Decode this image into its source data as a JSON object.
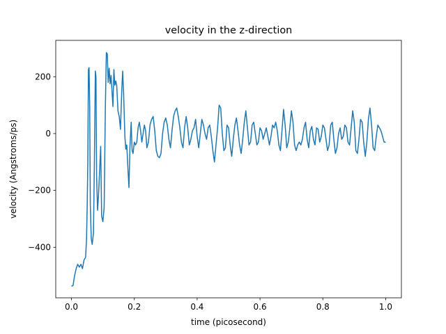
{
  "chart_data": {
    "type": "line",
    "title": "velocity in the z-direction",
    "x_label": "time (picosecond)",
    "y_label": "velocity (Angstroms/ps)",
    "xlim": [
      -0.05,
      1.05
    ],
    "ylim": [
      -578,
      328
    ],
    "xticks": [
      {
        "value": 0,
        "label": "0.0"
      },
      0.2,
      0.4,
      0.6,
      0.8,
      {
        "value": 1,
        "label": "1.0"
      }
    ],
    "yticks": [
      {
        "value": -400,
        "label": "−400"
      },
      {
        "value": -200,
        "label": "−200"
      },
      0,
      200
    ],
    "color": "#1f77b4",
    "x": [
      0.0,
      0.005,
      0.01,
      0.015,
      0.02,
      0.025,
      0.03,
      0.035,
      0.04,
      0.045,
      0.048,
      0.05,
      0.052,
      0.054,
      0.056,
      0.058,
      0.06,
      0.063,
      0.066,
      0.07,
      0.073,
      0.076,
      0.078,
      0.08,
      0.083,
      0.086,
      0.09,
      0.093,
      0.096,
      0.1,
      0.104,
      0.108,
      0.111,
      0.114,
      0.117,
      0.12,
      0.123,
      0.126,
      0.129,
      0.132,
      0.135,
      0.138,
      0.141,
      0.144,
      0.148,
      0.152,
      0.156,
      0.16,
      0.163,
      0.166,
      0.17,
      0.173,
      0.176,
      0.18,
      0.183,
      0.186,
      0.19,
      0.193,
      0.196,
      0.2,
      0.204,
      0.208,
      0.212,
      0.216,
      0.22,
      0.224,
      0.228,
      0.232,
      0.236,
      0.24,
      0.245,
      0.25,
      0.255,
      0.26,
      0.265,
      0.27,
      0.275,
      0.28,
      0.285,
      0.29,
      0.295,
      0.3,
      0.305,
      0.31,
      0.315,
      0.32,
      0.325,
      0.33,
      0.335,
      0.34,
      0.345,
      0.35,
      0.355,
      0.36,
      0.365,
      0.37,
      0.375,
      0.38,
      0.385,
      0.39,
      0.395,
      0.4,
      0.405,
      0.41,
      0.415,
      0.42,
      0.425,
      0.43,
      0.435,
      0.44,
      0.445,
      0.45,
      0.455,
      0.46,
      0.465,
      0.47,
      0.475,
      0.48,
      0.485,
      0.49,
      0.495,
      0.5,
      0.505,
      0.51,
      0.515,
      0.52,
      0.525,
      0.53,
      0.535,
      0.54,
      0.545,
      0.55,
      0.555,
      0.56,
      0.565,
      0.57,
      0.575,
      0.58,
      0.585,
      0.59,
      0.595,
      0.6,
      0.605,
      0.61,
      0.615,
      0.62,
      0.625,
      0.63,
      0.635,
      0.64,
      0.645,
      0.65,
      0.655,
      0.66,
      0.665,
      0.67,
      0.675,
      0.68,
      0.685,
      0.69,
      0.695,
      0.7,
      0.705,
      0.71,
      0.715,
      0.72,
      0.725,
      0.73,
      0.735,
      0.74,
      0.745,
      0.75,
      0.755,
      0.76,
      0.765,
      0.77,
      0.775,
      0.78,
      0.785,
      0.79,
      0.795,
      0.8,
      0.805,
      0.81,
      0.815,
      0.82,
      0.825,
      0.83,
      0.835,
      0.84,
      0.845,
      0.85,
      0.855,
      0.86,
      0.865,
      0.87,
      0.875,
      0.88,
      0.885,
      0.89,
      0.895,
      0.9,
      0.905,
      0.91,
      0.915,
      0.92,
      0.925,
      0.93,
      0.935,
      0.94,
      0.945,
      0.95,
      0.955,
      0.96,
      0.965,
      0.97,
      0.975,
      0.98,
      0.985,
      0.99,
      0.995,
      1.0
    ],
    "values": [
      -537,
      -535,
      -500,
      -475,
      -460,
      -470,
      -460,
      -475,
      -445,
      -435,
      -370,
      -260,
      -100,
      225,
      232,
      100,
      -250,
      -370,
      -390,
      -350,
      -100,
      220,
      200,
      -150,
      -270,
      -220,
      -120,
      -45,
      -290,
      -310,
      -260,
      100,
      285,
      280,
      180,
      230,
      175,
      205,
      150,
      95,
      225,
      170,
      185,
      170,
      80,
      60,
      15,
      150,
      220,
      140,
      -10,
      -55,
      -40,
      -130,
      -190,
      -50,
      40,
      -60,
      -70,
      -30,
      -40,
      -30,
      20,
      40,
      10,
      -30,
      0,
      30,
      10,
      -50,
      -30,
      30,
      50,
      60,
      10,
      -60,
      -80,
      -85,
      -70,
      0,
      40,
      55,
      30,
      -20,
      -50,
      10,
      60,
      80,
      90,
      60,
      20,
      -30,
      -50,
      20,
      60,
      20,
      -40,
      -20,
      10,
      20,
      50,
      -10,
      -50,
      0,
      50,
      30,
      0,
      -20,
      20,
      30,
      -10,
      -60,
      -100,
      -40,
      20,
      100,
      90,
      0,
      -60,
      -50,
      30,
      20,
      -40,
      -80,
      -20,
      30,
      55,
      10,
      -40,
      -70,
      -20,
      40,
      80,
      20,
      -40,
      -30,
      30,
      40,
      0,
      -40,
      -30,
      20,
      10,
      -20,
      0,
      20,
      -10,
      -40,
      -10,
      30,
      20,
      40,
      10,
      -40,
      -60,
      10,
      85,
      30,
      -50,
      -30,
      20,
      80,
      40,
      -40,
      -60,
      -40,
      -30,
      -40,
      -20,
      20,
      40,
      -20,
      -50,
      10,
      25,
      -20,
      -40,
      20,
      15,
      -30,
      -10,
      30,
      20,
      -20,
      -60,
      -40,
      30,
      40,
      -20,
      -70,
      -50,
      0,
      20,
      -20,
      -10,
      30,
      20,
      -30,
      -40,
      20,
      80,
      40,
      -60,
      -70,
      -20,
      50,
      40,
      -30,
      -80,
      -30,
      50,
      90,
      30,
      -50,
      -60,
      -10,
      30,
      20,
      10,
      -10,
      -30,
      -30
    ]
  }
}
